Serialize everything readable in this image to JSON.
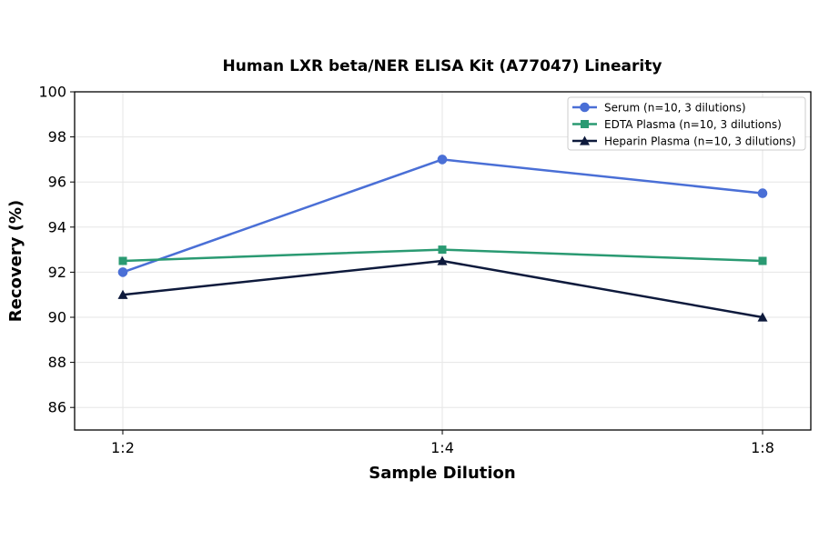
{
  "chart_data": {
    "type": "line",
    "title": "Human LXR beta/NER ELISA Kit (A77047) Linearity",
    "xlabel": "Sample Dilution",
    "ylabel": "Recovery (%)",
    "categories": [
      "1:2",
      "1:4",
      "1:8"
    ],
    "ylim": [
      85,
      100
    ],
    "yticks": [
      86,
      88,
      90,
      92,
      94,
      96,
      98,
      100
    ],
    "grid": true,
    "legend_position": "top-right",
    "series": [
      {
        "name": "Serum (n=10, 3 dilutions)",
        "values": [
          92,
          97,
          95.5
        ],
        "color": "#4a6fd6",
        "marker": "circle"
      },
      {
        "name": "EDTA Plasma (n=10, 3 dilutions)",
        "values": [
          92.5,
          93,
          92.5
        ],
        "color": "#2a9a72",
        "marker": "square"
      },
      {
        "name": "Heparin Plasma (n=10, 3 dilutions)",
        "values": [
          91,
          92.5,
          90
        ],
        "color": "#0e1a3c",
        "marker": "triangle"
      }
    ]
  }
}
